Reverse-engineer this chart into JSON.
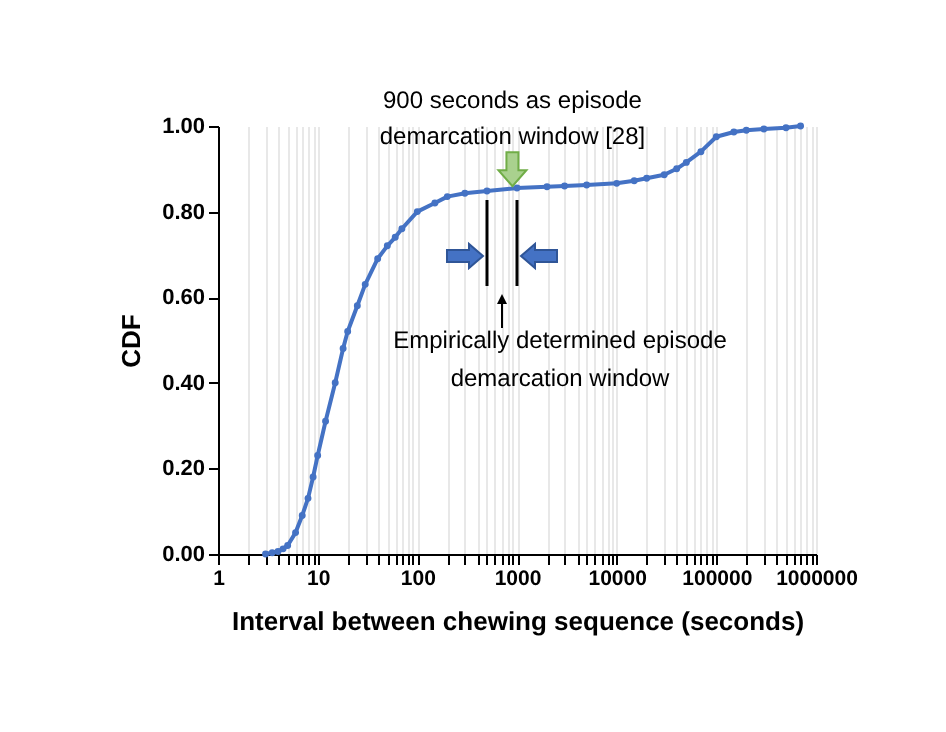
{
  "chart_data": {
    "type": "line",
    "xlabel": "Interval between chewing sequence (seconds)",
    "ylabel": "CDF",
    "x": [
      3,
      3.5,
      4,
      4.5,
      5,
      6,
      7,
      8,
      9,
      10,
      12,
      15,
      18,
      20,
      25,
      30,
      40,
      50,
      60,
      70,
      100,
      150,
      200,
      300,
      500,
      1000,
      2000,
      3000,
      5000,
      10000,
      15000,
      20000,
      30000,
      40000,
      50000,
      70000,
      100000,
      150000,
      200000,
      300000,
      500000,
      700000
    ],
    "series": [
      {
        "color": "#4472c4",
        "values": [
          0,
          0.003,
          0.006,
          0.012,
          0.02,
          0.05,
          0.09,
          0.13,
          0.18,
          0.23,
          0.31,
          0.4,
          0.48,
          0.52,
          0.58,
          0.63,
          0.69,
          0.72,
          0.74,
          0.76,
          0.8,
          0.82,
          0.835,
          0.843,
          0.848,
          0.855,
          0.858,
          0.86,
          0.862,
          0.866,
          0.872,
          0.878,
          0.886,
          0.9,
          0.915,
          0.94,
          0.975,
          0.986,
          0.99,
          0.993,
          0.996,
          1.0
        ]
      }
    ],
    "xlim": [
      1,
      1000000
    ],
    "xticks": [
      1,
      10,
      100,
      1000,
      10000,
      100000,
      1000000
    ],
    "ylim": [
      0,
      1
    ],
    "yticks": [
      {
        "value": 0,
        "label": "0.00"
      },
      {
        "value": 0.2,
        "label": "0.20"
      },
      {
        "value": 0.4,
        "label": "0.40"
      },
      {
        "value": 0.6,
        "label": "0.60"
      },
      {
        "value": 0.8,
        "label": "0.80"
      },
      {
        "value": 1,
        "label": "1.00"
      }
    ],
    "log": "x",
    "grid": "x",
    "marker": "circle",
    "line_style": "solid",
    "ref_lines": [
      {
        "axis": "x",
        "value": 500,
        "color": "#000000"
      },
      {
        "axis": "x",
        "value": 1000,
        "color": "#000000"
      }
    ],
    "annotations": [
      {
        "text": "900 seconds as episode demarcation window [28]",
        "x": 900,
        "y": 0.85
      },
      "Empirically determined episode demarcation window"
    ]
  }
}
